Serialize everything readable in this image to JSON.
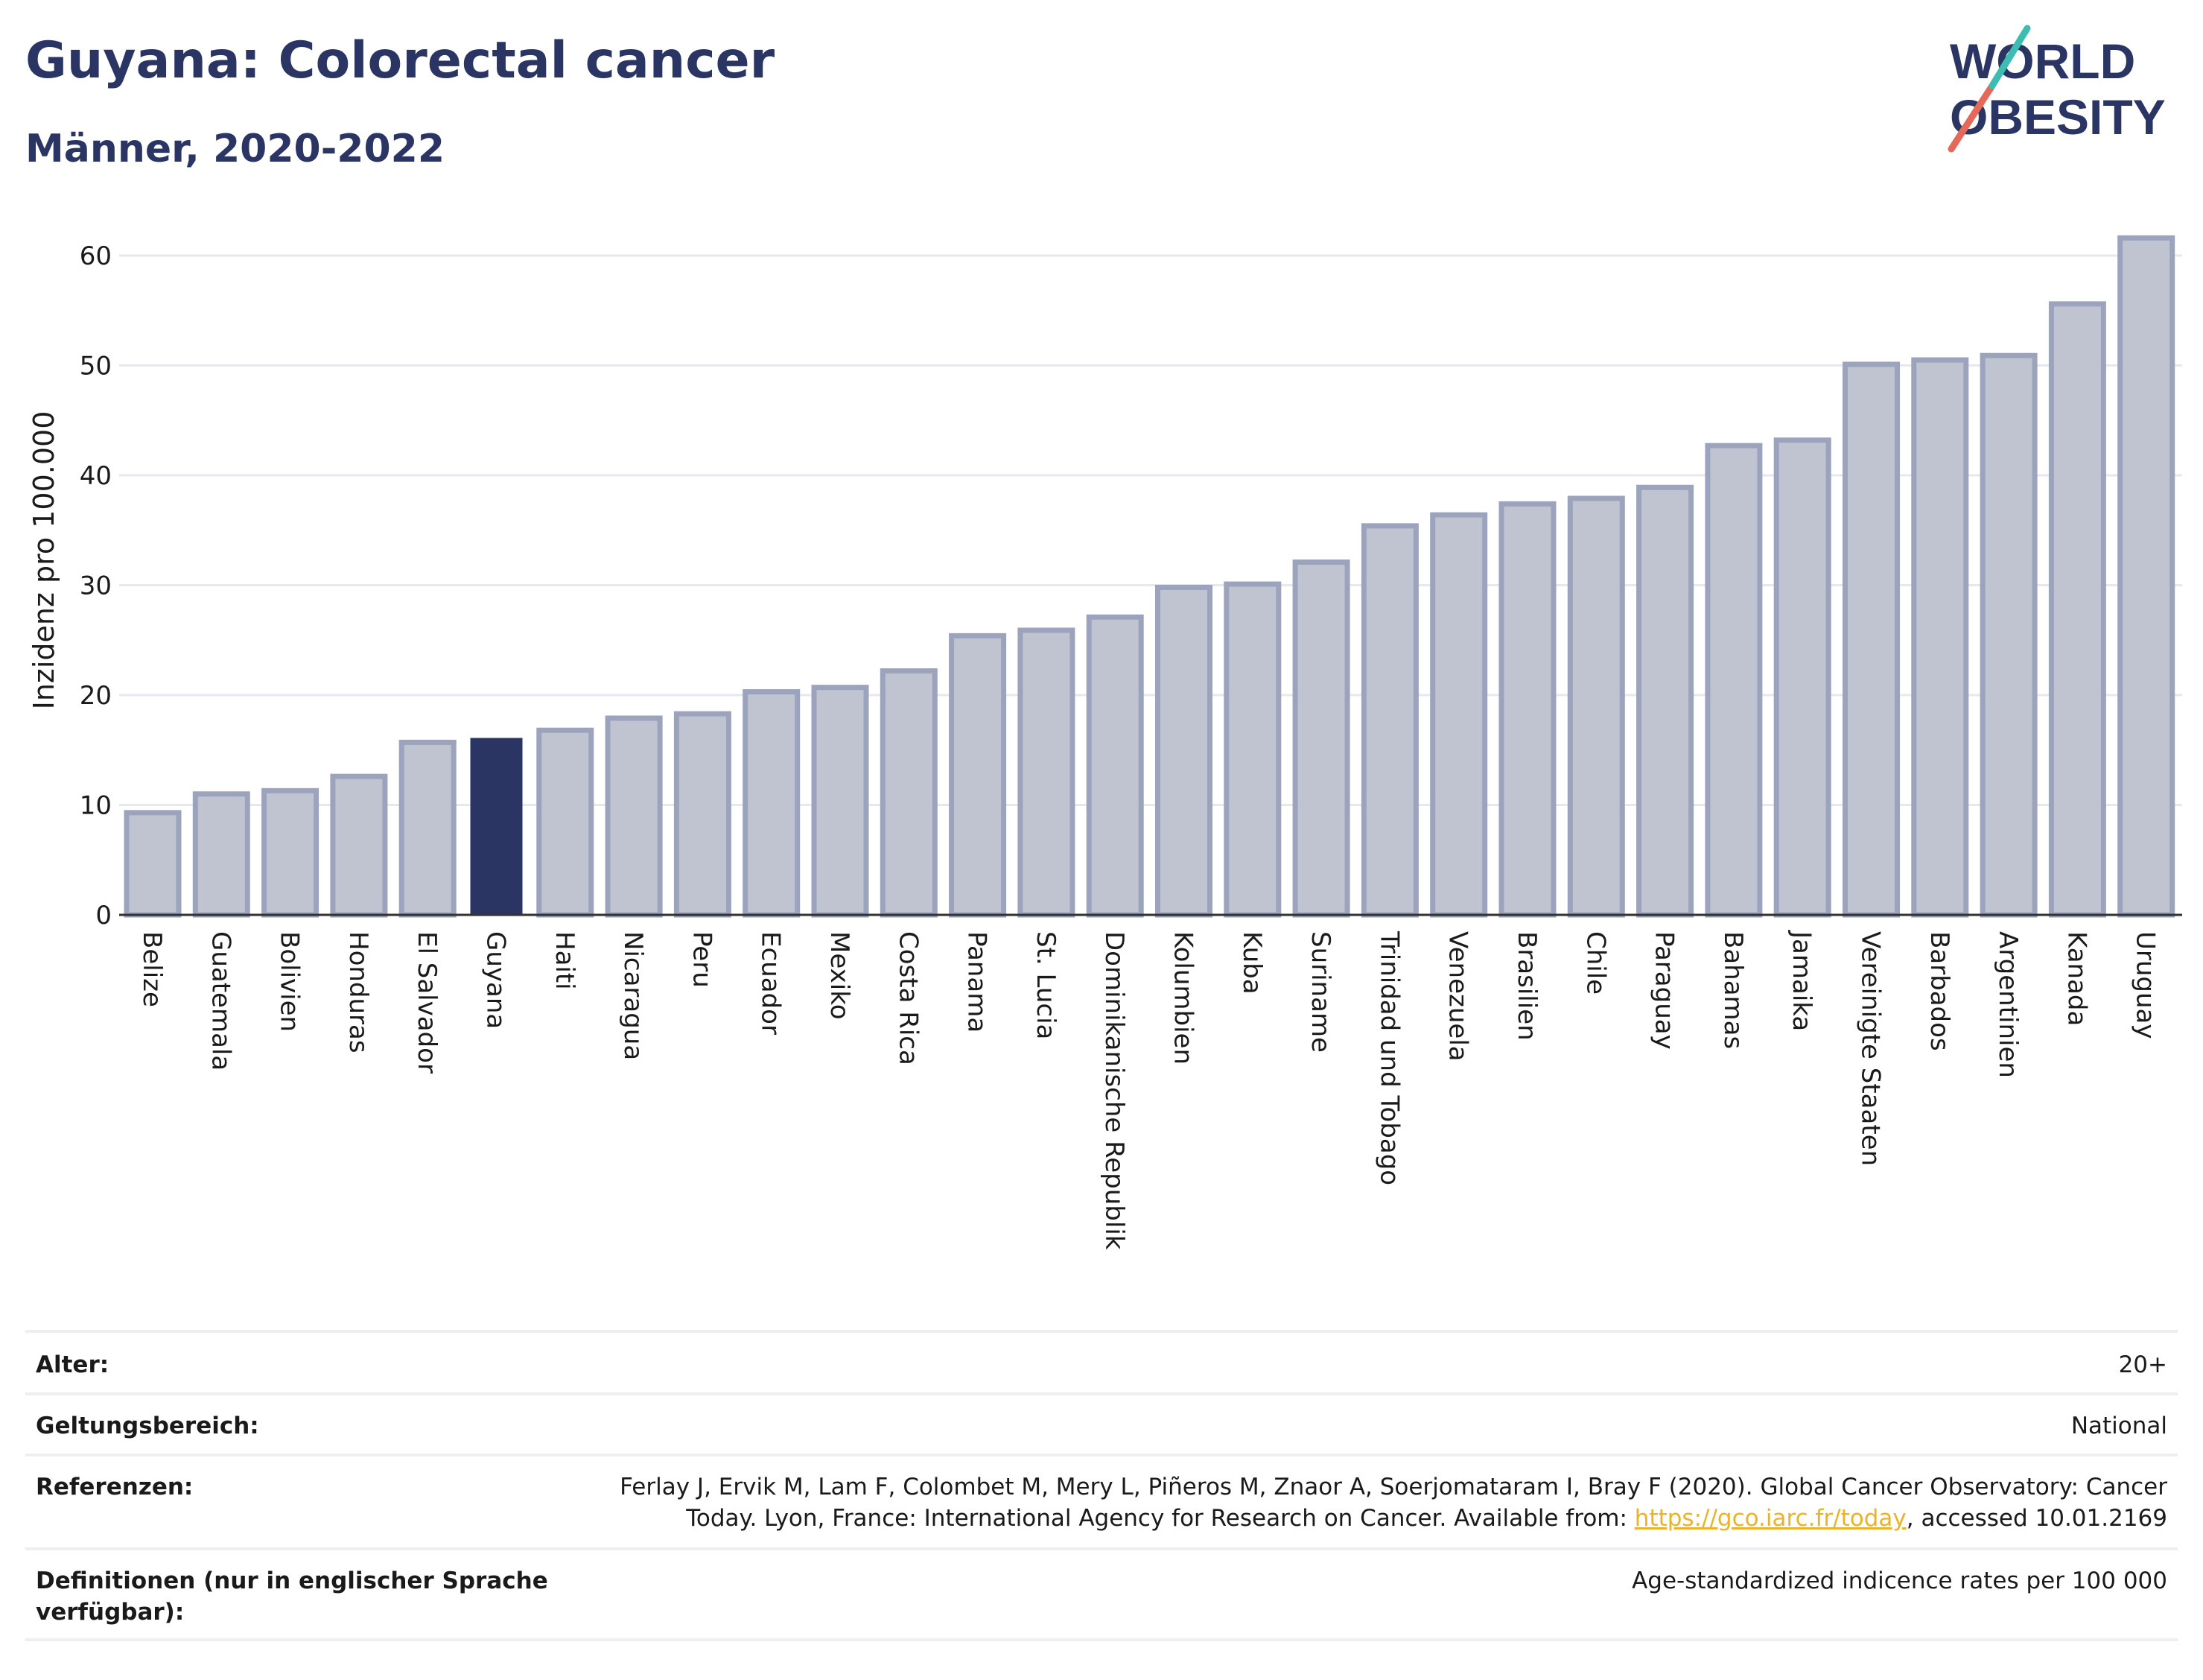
{
  "header": {
    "title": "Guyana: Colorectal cancer",
    "subtitle": "Männer, 2020-2022"
  },
  "logo": {
    "line1": "WORLD",
    "line2": "OBESITY",
    "colors": {
      "text": "#2a3563",
      "slash_red": "#e5695a",
      "slash_teal": "#3dbdb2"
    }
  },
  "colors": {
    "bar": "#c0c4d1",
    "bar_stroke": "#9ba3bd",
    "highlight": "#2a3563",
    "grid": "#e6e8ee"
  },
  "chart_data": {
    "type": "bar",
    "ylabel": "Inzidenz pro 100.000",
    "ylim": [
      0,
      64
    ],
    "yticks": [
      0,
      10,
      20,
      30,
      40,
      50,
      60
    ],
    "grid": true,
    "highlight": "Guyana",
    "categories": [
      "Belize",
      "Guatemala",
      "Bolivien",
      "Honduras",
      "El Salvador",
      "Guyana",
      "Haiti",
      "Nicaragua",
      "Peru",
      "Ecuador",
      "Mexiko",
      "Costa Rica",
      "Panama",
      "St. Lucia",
      "Dominikanische Republik",
      "Kolumbien",
      "Kuba",
      "Suriname",
      "Trinidad und Tobago",
      "Venezuela",
      "Brasilien",
      "Chile",
      "Paraguay",
      "Bahamas",
      "Jamaika",
      "Vereinigte Staaten",
      "Barbados",
      "Argentinien",
      "Kanada",
      "Uruguay"
    ],
    "values": [
      9.3,
      11.0,
      11.3,
      12.6,
      15.7,
      16.1,
      16.8,
      17.9,
      18.3,
      20.3,
      20.7,
      22.2,
      25.4,
      25.9,
      27.1,
      29.8,
      30.1,
      32.1,
      35.4,
      36.4,
      37.4,
      37.9,
      38.9,
      42.7,
      43.2,
      50.1,
      50.5,
      50.9,
      55.6,
      61.6
    ]
  },
  "meta": {
    "rows": [
      {
        "label": "Alter:",
        "value": "20+"
      },
      {
        "label": "Geltungsbereich:",
        "value": "National"
      },
      {
        "label": "Referenzen:",
        "value": "Ferlay J, Ervik M, Lam F, Colombet M, Mery L, Piñeros M, Znaor A, Soerjomataram I, Bray F (2020). Global Cancer Observatory: Cancer Today. Lyon, France: International Agency for Research on Cancer. Available from: ",
        "link": "https://gco.iarc.fr/today",
        "suffix": ", accessed 10.01.2169"
      },
      {
        "label": "Definitionen (nur in englischer Sprache verfügbar):",
        "value": "Age-standardized indicence rates per 100 000"
      }
    ]
  }
}
